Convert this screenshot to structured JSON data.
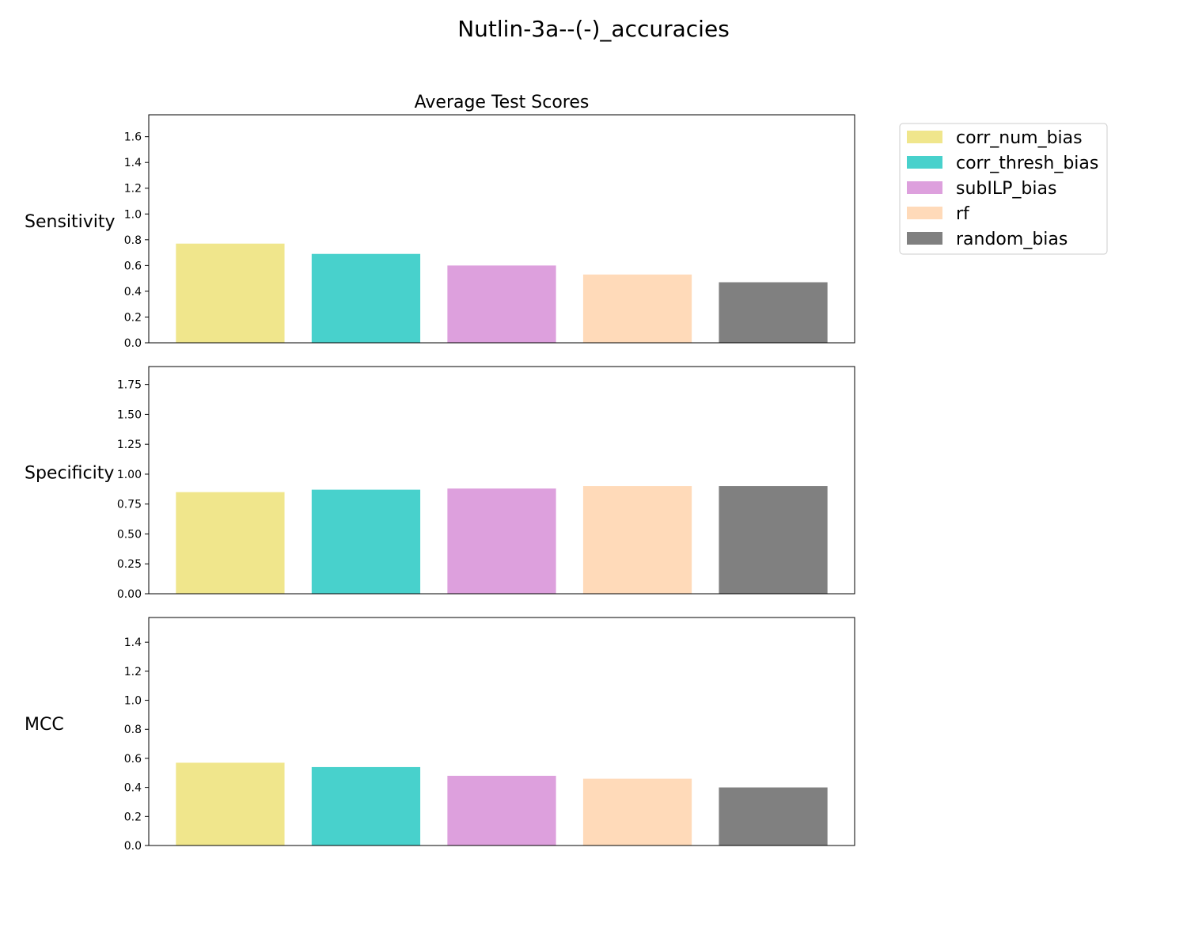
{
  "chart_data": {
    "type": "bar",
    "title": "Nutlin-3a--(-)_accuracies",
    "subtitle": "Average Test Scores",
    "categories": [
      "corr_num_bias",
      "corr_thresh_bias",
      "subILP_bias",
      "rf",
      "random_bias"
    ],
    "colors": [
      "#f0e68c",
      "#48d1cc",
      "#dda0dd",
      "#ffdab9",
      "#808080"
    ],
    "legend": {
      "placement": "upper-right-outside",
      "entries": [
        "corr_num_bias",
        "corr_thresh_bias",
        "subILP_bias",
        "rf",
        "random_bias"
      ]
    },
    "grid": false,
    "panels": [
      {
        "ylabel": "Sensitivity",
        "ylim": [
          0,
          1.77
        ],
        "ticks": [
          0.0,
          0.2,
          0.4,
          0.6,
          0.8,
          1.0,
          1.2,
          1.4,
          1.6
        ],
        "tick_labels": [
          "0.0",
          "0.2",
          "0.4",
          "0.6",
          "0.8",
          "1.0",
          "1.2",
          "1.4",
          "1.6"
        ],
        "values": [
          0.77,
          0.69,
          0.6,
          0.53,
          0.47
        ]
      },
      {
        "ylabel": "Specificity",
        "ylim": [
          0,
          1.9
        ],
        "ticks": [
          0.0,
          0.25,
          0.5,
          0.75,
          1.0,
          1.25,
          1.5,
          1.75
        ],
        "tick_labels": [
          "0.00",
          "0.25",
          "0.50",
          "0.75",
          "1.00",
          "1.25",
          "1.50",
          "1.75"
        ],
        "values": [
          0.85,
          0.87,
          0.88,
          0.9,
          0.9
        ]
      },
      {
        "ylabel": "MCC",
        "ylim": [
          0,
          1.57
        ],
        "ticks": [
          0.0,
          0.2,
          0.4,
          0.6,
          0.8,
          1.0,
          1.2,
          1.4
        ],
        "tick_labels": [
          "0.0",
          "0.2",
          "0.4",
          "0.6",
          "0.8",
          "1.0",
          "1.2",
          "1.4"
        ],
        "values": [
          0.57,
          0.54,
          0.48,
          0.46,
          0.4
        ]
      }
    ]
  }
}
